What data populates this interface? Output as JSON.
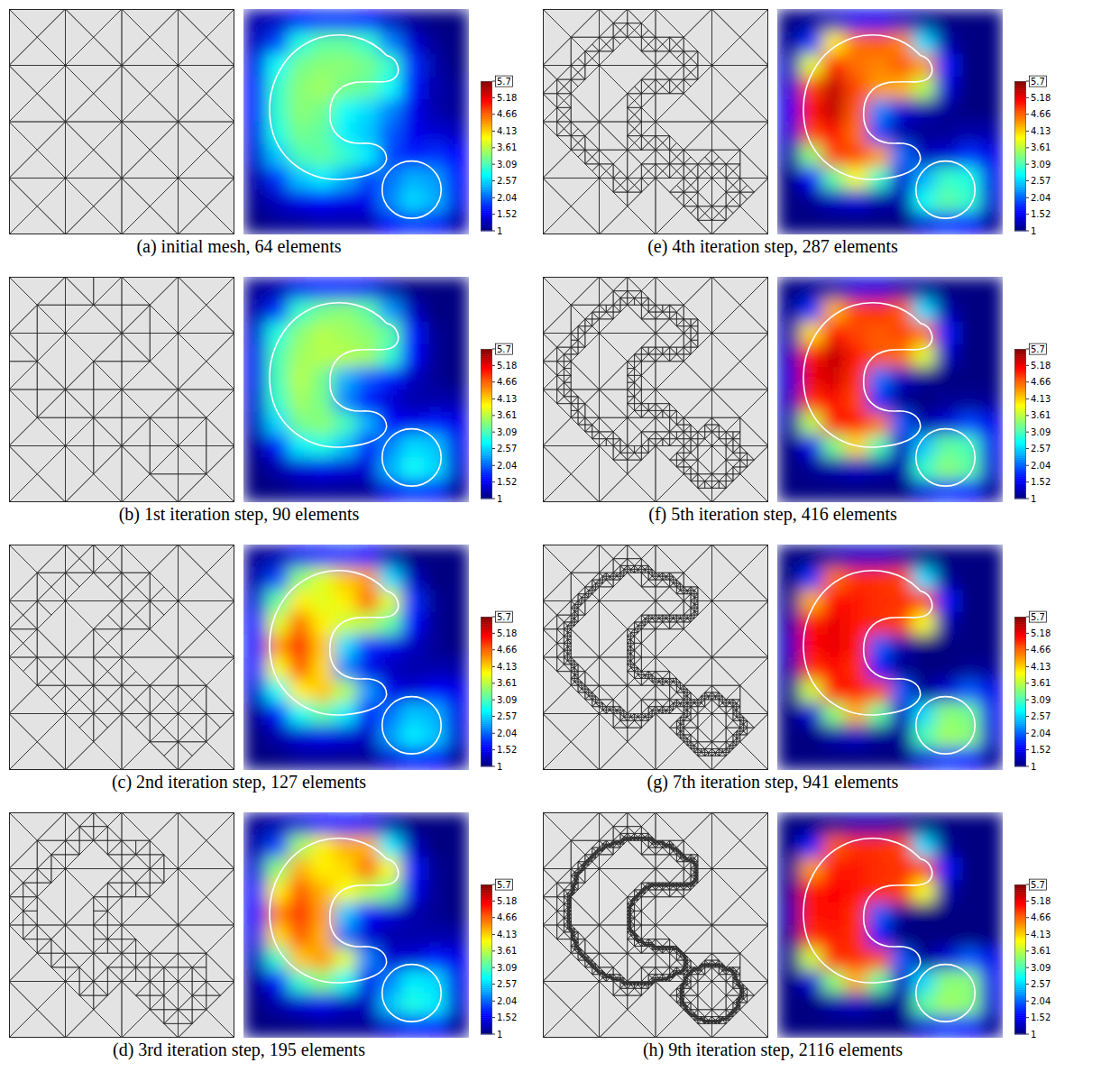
{
  "chart_data": {
    "type": "heatmap",
    "colorbar": {
      "range": [
        1,
        5.7
      ],
      "ticks": [
        1,
        1.52,
        2.04,
        2.57,
        3.09,
        3.61,
        4.13,
        4.66,
        5.18,
        5.7
      ]
    },
    "panels": [
      {
        "caption": "(a) initial mesh, 64 elements",
        "cells": [
          [
            1.2,
            1.3,
            1.6,
            1.8,
            1.8,
            1.6,
            1.3,
            1.1,
            1.0,
            1.0
          ],
          [
            1.3,
            1.9,
            2.9,
            3.2,
            3.2,
            3.0,
            2.2,
            1.4,
            1.1,
            1.0
          ],
          [
            1.5,
            2.8,
            3.3,
            3.4,
            3.4,
            3.3,
            3.0,
            1.8,
            1.2,
            1.0
          ],
          [
            1.6,
            3.0,
            3.4,
            3.5,
            3.3,
            3.2,
            2.8,
            1.7,
            1.2,
            1.1
          ],
          [
            1.6,
            3.0,
            3.4,
            3.3,
            2.8,
            2.6,
            2.2,
            1.5,
            1.2,
            1.1
          ],
          [
            1.5,
            2.9,
            3.3,
            3.2,
            2.7,
            2.5,
            2.0,
            1.5,
            1.4,
            1.3
          ],
          [
            1.4,
            2.5,
            3.1,
            3.2,
            3.0,
            2.7,
            1.9,
            1.7,
            1.8,
            1.6
          ],
          [
            1.2,
            1.8,
            2.5,
            2.7,
            2.4,
            1.9,
            2.1,
            2.4,
            2.3,
            1.6
          ],
          [
            1.1,
            1.3,
            1.5,
            1.6,
            1.5,
            1.5,
            2.2,
            2.6,
            2.4,
            1.5
          ],
          [
            1.0,
            1.1,
            1.1,
            1.2,
            1.2,
            1.2,
            1.6,
            1.8,
            1.7,
            1.2
          ]
        ]
      },
      {
        "caption": "(b) 1st iteration step, 90 elements",
        "cells": [
          [
            1.1,
            1.2,
            1.5,
            1.7,
            1.7,
            1.5,
            1.2,
            1.0,
            1.0,
            1.0
          ],
          [
            1.2,
            1.8,
            3.0,
            3.3,
            3.4,
            3.2,
            2.3,
            1.3,
            1.0,
            1.0
          ],
          [
            1.4,
            2.9,
            3.4,
            3.6,
            3.5,
            3.4,
            3.2,
            1.7,
            1.1,
            1.0
          ],
          [
            1.5,
            3.1,
            3.5,
            3.6,
            3.6,
            3.5,
            3.0,
            1.6,
            1.1,
            1.0
          ],
          [
            1.5,
            3.1,
            3.6,
            3.3,
            2.4,
            2.0,
            1.7,
            1.3,
            1.1,
            1.0
          ],
          [
            1.4,
            3.0,
            3.5,
            3.3,
            2.2,
            1.6,
            1.4,
            1.2,
            1.2,
            1.2
          ],
          [
            1.3,
            2.6,
            3.3,
            3.4,
            3.1,
            2.4,
            1.6,
            1.5,
            1.7,
            1.5
          ],
          [
            1.1,
            1.7,
            2.7,
            2.9,
            2.5,
            1.7,
            2.2,
            2.6,
            2.5,
            1.5
          ],
          [
            1.0,
            1.2,
            1.4,
            1.5,
            1.4,
            1.4,
            2.4,
            2.8,
            2.6,
            1.4
          ],
          [
            1.0,
            1.0,
            1.1,
            1.1,
            1.1,
            1.1,
            1.5,
            1.8,
            1.7,
            1.1
          ]
        ]
      },
      {
        "caption": "(c) 2nd iteration step, 127 elements",
        "cells": [
          [
            1.1,
            1.2,
            1.5,
            1.7,
            1.8,
            1.6,
            1.2,
            1.0,
            1.0,
            1.0
          ],
          [
            1.2,
            1.9,
            3.4,
            3.8,
            4.2,
            4.4,
            2.6,
            1.3,
            1.0,
            1.0
          ],
          [
            1.4,
            3.2,
            4.0,
            3.8,
            4.0,
            4.6,
            3.8,
            1.8,
            1.1,
            1.0
          ],
          [
            1.6,
            3.8,
            4.6,
            4.0,
            3.7,
            3.6,
            3.2,
            1.6,
            1.1,
            1.0
          ],
          [
            1.7,
            4.4,
            5.0,
            4.2,
            2.6,
            1.8,
            1.5,
            1.3,
            1.1,
            1.0
          ],
          [
            1.6,
            3.9,
            4.7,
            4.1,
            2.2,
            1.5,
            1.3,
            1.2,
            1.2,
            1.2
          ],
          [
            1.4,
            2.8,
            4.0,
            4.2,
            3.6,
            2.3,
            1.5,
            1.4,
            1.6,
            1.5
          ],
          [
            1.1,
            1.7,
            2.8,
            3.2,
            2.7,
            1.6,
            2.1,
            2.5,
            2.4,
            1.5
          ],
          [
            1.0,
            1.2,
            1.4,
            1.5,
            1.4,
            1.3,
            2.3,
            2.7,
            2.5,
            1.4
          ],
          [
            1.0,
            1.0,
            1.1,
            1.1,
            1.1,
            1.1,
            1.4,
            1.7,
            1.6,
            1.1
          ]
        ]
      },
      {
        "caption": "(d) 3rd iteration step, 195 elements",
        "cells": [
          [
            1.1,
            1.2,
            1.4,
            1.6,
            1.7,
            1.5,
            1.2,
            1.0,
            1.0,
            1.0
          ],
          [
            1.2,
            1.9,
            3.5,
            4.0,
            4.3,
            4.3,
            2.7,
            1.3,
            1.0,
            1.0
          ],
          [
            1.4,
            3.4,
            4.3,
            4.0,
            4.1,
            4.6,
            3.9,
            1.7,
            1.1,
            1.0
          ],
          [
            1.6,
            4.0,
            4.7,
            4.3,
            3.9,
            3.6,
            3.3,
            1.5,
            1.1,
            1.0
          ],
          [
            1.6,
            4.5,
            4.9,
            4.4,
            2.5,
            1.6,
            1.4,
            1.2,
            1.1,
            1.0
          ],
          [
            1.5,
            4.1,
            4.7,
            4.3,
            2.1,
            1.4,
            1.2,
            1.2,
            1.2,
            1.2
          ],
          [
            1.3,
            3.0,
            4.2,
            4.4,
            3.8,
            2.2,
            1.4,
            1.4,
            1.7,
            1.5
          ],
          [
            1.1,
            1.7,
            3.0,
            3.4,
            2.8,
            1.5,
            2.2,
            2.7,
            2.6,
            1.5
          ],
          [
            1.0,
            1.2,
            1.4,
            1.5,
            1.3,
            1.3,
            2.5,
            2.9,
            2.7,
            1.4
          ],
          [
            1.0,
            1.0,
            1.0,
            1.1,
            1.1,
            1.1,
            1.4,
            1.7,
            1.6,
            1.1
          ]
        ]
      },
      {
        "caption": "(e) 4th iteration step, 287 elements",
        "cells": [
          [
            1.0,
            1.1,
            1.3,
            1.5,
            1.5,
            1.3,
            1.1,
            1.0,
            1.0,
            1.0
          ],
          [
            1.1,
            1.8,
            4.0,
            4.6,
            4.7,
            4.5,
            2.6,
            1.2,
            1.0,
            1.0
          ],
          [
            1.3,
            3.8,
            5.0,
            4.6,
            4.5,
            4.7,
            4.4,
            1.7,
            1.0,
            1.0
          ],
          [
            1.4,
            4.8,
            5.4,
            4.8,
            4.4,
            4.3,
            3.6,
            1.4,
            1.0,
            1.0
          ],
          [
            1.5,
            5.1,
            5.4,
            4.7,
            2.2,
            1.4,
            1.2,
            1.1,
            1.0,
            1.0
          ],
          [
            1.4,
            4.8,
            5.1,
            4.6,
            1.9,
            1.2,
            1.1,
            1.1,
            1.2,
            1.2
          ],
          [
            1.2,
            3.4,
            4.8,
            4.8,
            4.4,
            2.1,
            1.3,
            1.4,
            1.8,
            1.5
          ],
          [
            1.0,
            1.6,
            3.2,
            3.9,
            3.0,
            1.4,
            2.4,
            3.0,
            2.9,
            1.5
          ],
          [
            1.0,
            1.1,
            1.3,
            1.4,
            1.2,
            1.2,
            2.8,
            3.2,
            3.0,
            1.4
          ],
          [
            1.0,
            1.0,
            1.0,
            1.0,
            1.0,
            1.0,
            1.4,
            1.8,
            1.6,
            1.1
          ]
        ]
      },
      {
        "caption": "(f) 5th iteration step, 416 elements",
        "cells": [
          [
            1.0,
            1.1,
            1.2,
            1.4,
            1.4,
            1.2,
            1.1,
            1.0,
            1.0,
            1.0
          ],
          [
            1.1,
            1.8,
            4.3,
            4.8,
            4.9,
            4.7,
            2.6,
            1.2,
            1.0,
            1.0
          ],
          [
            1.2,
            4.1,
            5.1,
            4.8,
            4.7,
            4.8,
            4.6,
            1.7,
            1.0,
            1.0
          ],
          [
            1.3,
            5.0,
            5.4,
            5.0,
            4.7,
            4.6,
            3.8,
            1.3,
            1.0,
            1.0
          ],
          [
            1.4,
            5.2,
            5.3,
            4.9,
            2.1,
            1.3,
            1.1,
            1.0,
            1.0,
            1.0
          ],
          [
            1.3,
            4.9,
            5.1,
            4.8,
            1.8,
            1.1,
            1.0,
            1.1,
            1.1,
            1.1
          ],
          [
            1.2,
            3.6,
            5.0,
            5.0,
            4.6,
            2.0,
            1.2,
            1.4,
            1.9,
            1.5
          ],
          [
            1.0,
            1.5,
            3.3,
            4.1,
            3.1,
            1.3,
            2.5,
            3.2,
            3.1,
            1.5
          ],
          [
            1.0,
            1.1,
            1.2,
            1.3,
            1.2,
            1.2,
            3.0,
            3.4,
            3.2,
            1.4
          ],
          [
            1.0,
            1.0,
            1.0,
            1.0,
            1.0,
            1.0,
            1.4,
            1.8,
            1.6,
            1.1
          ]
        ]
      },
      {
        "caption": "(g) 7th iteration step, 941 elements",
        "cells": [
          [
            1.0,
            1.0,
            1.2,
            1.3,
            1.3,
            1.2,
            1.0,
            1.0,
            1.0,
            1.0
          ],
          [
            1.0,
            1.8,
            4.6,
            4.9,
            4.9,
            4.8,
            2.6,
            1.1,
            1.0,
            1.0
          ],
          [
            1.1,
            4.3,
            5.1,
            5.0,
            4.9,
            4.9,
            4.8,
            1.7,
            1.0,
            1.0
          ],
          [
            1.2,
            5.0,
            5.2,
            5.0,
            4.9,
            4.8,
            3.9,
            1.2,
            1.0,
            1.0
          ],
          [
            1.3,
            5.1,
            5.2,
            5.0,
            2.0,
            1.2,
            1.0,
            1.0,
            1.0,
            1.0
          ],
          [
            1.2,
            4.9,
            5.1,
            4.9,
            1.7,
            1.1,
            1.0,
            1.0,
            1.1,
            1.1
          ],
          [
            1.1,
            3.7,
            5.0,
            5.0,
            4.8,
            2.0,
            1.1,
            1.4,
            2.0,
            1.5
          ],
          [
            1.0,
            1.4,
            3.4,
            4.3,
            3.2,
            1.3,
            2.6,
            3.4,
            3.3,
            1.5
          ],
          [
            1.0,
            1.0,
            1.2,
            1.3,
            1.1,
            1.1,
            3.1,
            3.5,
            3.4,
            1.4
          ],
          [
            1.0,
            1.0,
            1.0,
            1.0,
            1.0,
            1.0,
            1.4,
            1.8,
            1.6,
            1.1
          ]
        ]
      },
      {
        "caption": "(h) 9th iteration step, 2116 elements",
        "cells": [
          [
            1.0,
            1.0,
            1.1,
            1.2,
            1.2,
            1.1,
            1.0,
            1.0,
            1.0,
            1.0
          ],
          [
            1.0,
            1.7,
            4.7,
            4.9,
            4.9,
            4.8,
            2.6,
            1.1,
            1.0,
            1.0
          ],
          [
            1.1,
            4.4,
            5.0,
            5.0,
            4.9,
            4.9,
            4.8,
            1.7,
            1.0,
            1.0
          ],
          [
            1.1,
            5.0,
            5.1,
            5.0,
            4.9,
            4.8,
            3.9,
            1.2,
            1.0,
            1.0
          ],
          [
            1.2,
            5.0,
            5.1,
            4.9,
            2.0,
            1.1,
            1.0,
            1.0,
            1.0,
            1.0
          ],
          [
            1.1,
            4.9,
            5.0,
            4.9,
            1.7,
            1.0,
            1.0,
            1.0,
            1.0,
            1.0
          ],
          [
            1.1,
            3.7,
            4.9,
            4.9,
            4.8,
            2.0,
            1.1,
            1.4,
            2.0,
            1.5
          ],
          [
            1.0,
            1.4,
            3.4,
            4.3,
            3.2,
            1.3,
            2.6,
            3.4,
            3.4,
            1.5
          ],
          [
            1.0,
            1.0,
            1.2,
            1.3,
            1.1,
            1.1,
            3.2,
            3.5,
            3.4,
            1.4
          ],
          [
            1.0,
            1.0,
            1.0,
            1.0,
            1.0,
            1.0,
            1.4,
            1.8,
            1.6,
            1.1
          ]
        ]
      }
    ]
  }
}
